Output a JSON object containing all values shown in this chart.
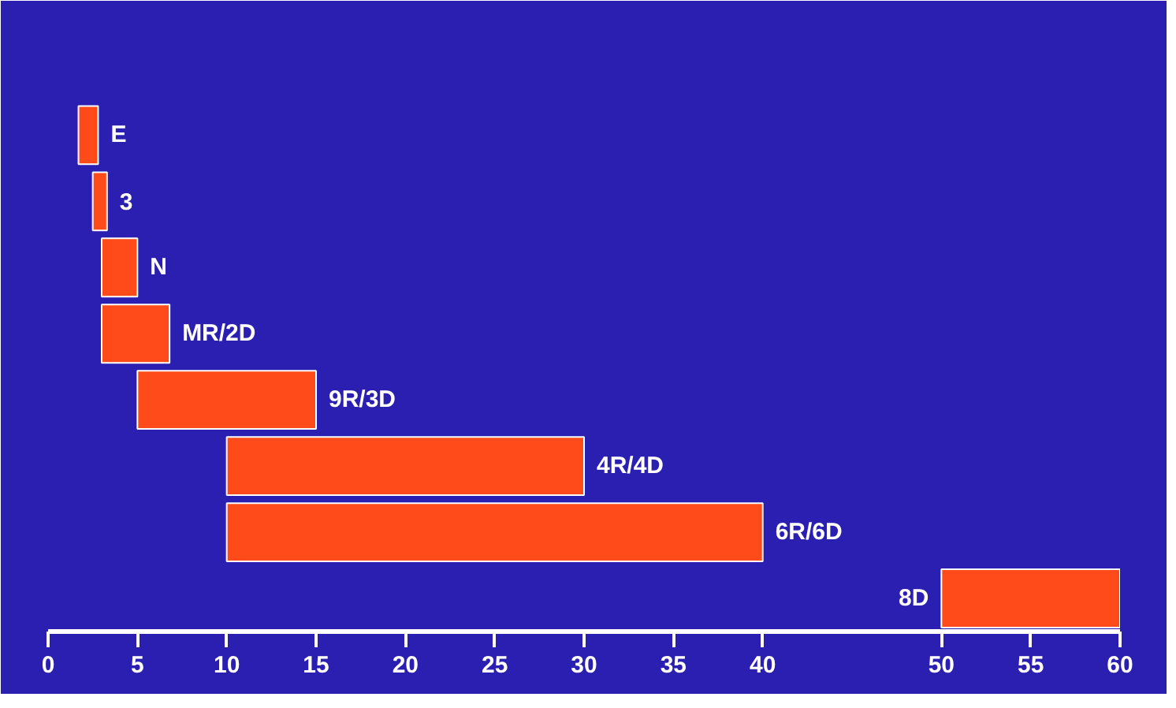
{
  "chart_data": {
    "type": "bar",
    "orientation": "horizontal",
    "categories": [
      "E",
      "3",
      "N",
      "MR/2D",
      "9R/3D",
      "4R/4D",
      "6R/6D",
      "8D"
    ],
    "base": [
      1.7,
      2.5,
      3,
      3,
      5,
      10,
      10,
      50
    ],
    "values": [
      1.1,
      0.8,
      2,
      3.8,
      10,
      20,
      30,
      10
    ],
    "color": "#ff4a1a",
    "xlim": [
      0,
      60
    ],
    "xticks": [
      0,
      5,
      10,
      15,
      20,
      25,
      30,
      35,
      40,
      50,
      55,
      60
    ],
    "grid": false
  }
}
